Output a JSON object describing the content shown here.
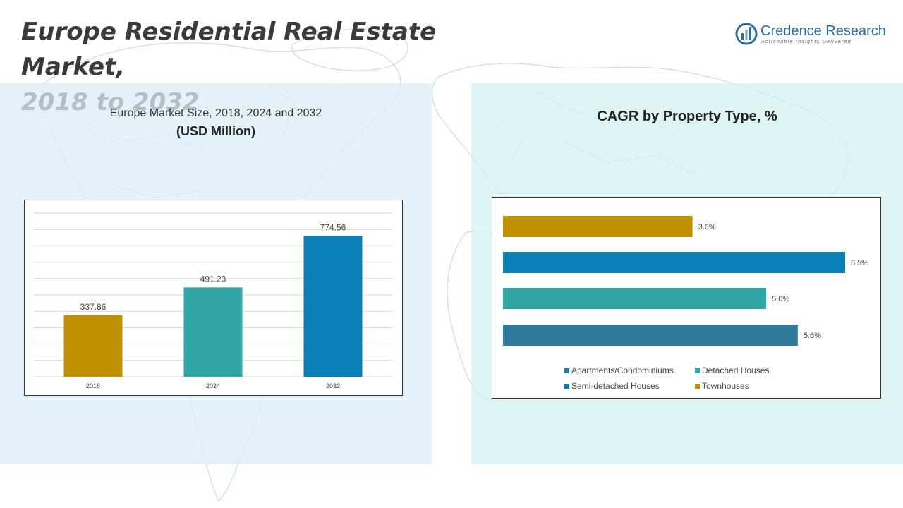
{
  "title_line1": "Europe Residential Real Estate Market,",
  "title_line2": "2018 to 2032",
  "logo": {
    "name": "Credence Research",
    "tagline": "Actionable Insights Delivered",
    "color": "#2a6f9e"
  },
  "left_panel": {
    "title": "Europe Market Size, 2018, 2024 and 2032",
    "subtitle": "(USD Million)"
  },
  "right_panel": {
    "title": "CAGR by Property Type, %"
  },
  "chart_data": [
    {
      "type": "bar",
      "title": "Europe Market Size, 2018, 2024 and 2032",
      "subtitle": "(USD Million)",
      "categories": [
        "2018",
        "2024",
        "2032"
      ],
      "values": [
        337.86,
        491.23,
        774.56
      ],
      "labels": [
        "337.86",
        "491.23",
        "774.56"
      ],
      "colors": [
        "#bf9000",
        "#31a6a6",
        "#0a7fb5"
      ],
      "ylim": [
        0,
        900
      ],
      "grid": true,
      "gridlines": 11
    },
    {
      "type": "bar",
      "orientation": "horizontal",
      "title": "CAGR by Property Type, %",
      "categories": [
        "Townhouses",
        "Semi-detached Houses",
        "Detached Houses",
        "Apartments/Condominiums"
      ],
      "values": [
        3.6,
        6.5,
        5.0,
        5.6
      ],
      "labels": [
        "3.6%",
        "6.5%",
        "5.0%",
        "5.6%"
      ],
      "colors": [
        "#bf9000",
        "#0a7fb5",
        "#31a6a6",
        "#2e7b9b"
      ],
      "xlim": [
        0,
        6.5
      ],
      "legend_position": "bottom",
      "legend": [
        {
          "name": "Apartments/Condominiums",
          "color": "#2e7b9b"
        },
        {
          "name": "Detached Houses",
          "color": "#31a6a6"
        },
        {
          "name": "Semi-detached Houses",
          "color": "#0a7fb5"
        },
        {
          "name": "Townhouses",
          "color": "#bf9000"
        }
      ]
    }
  ]
}
